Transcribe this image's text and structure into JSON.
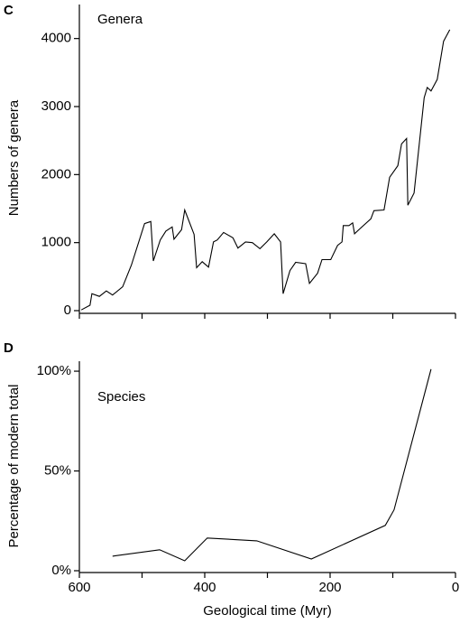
{
  "chart_data": [
    {
      "type": "line",
      "panel": "C",
      "annotation": "Genera",
      "ylabel": "Numbers of genera",
      "x": [
        597,
        583,
        580,
        568,
        557,
        547,
        531,
        517,
        496,
        486,
        482,
        471,
        462,
        452,
        449,
        437,
        432,
        417,
        413,
        404,
        394,
        386,
        380,
        370,
        355,
        347,
        335,
        324,
        312,
        301,
        289,
        279,
        275,
        264,
        255,
        239,
        233,
        220,
        213,
        199,
        188,
        181,
        179,
        170,
        164,
        161,
        153,
        135,
        130,
        114,
        105,
        92,
        86,
        78,
        76,
        66,
        50,
        45,
        39,
        29,
        19,
        9
      ],
      "series": [
        {
          "color": "#000000",
          "values": [
            10,
            80,
            250,
            210,
            290,
            230,
            350,
            670,
            1280,
            1310,
            730,
            1040,
            1170,
            1230,
            1050,
            1190,
            1480,
            1120,
            630,
            720,
            640,
            1010,
            1040,
            1150,
            1070,
            920,
            1010,
            1000,
            910,
            1010,
            1130,
            1010,
            250,
            590,
            710,
            690,
            400,
            550,
            750,
            750,
            960,
            1010,
            1250,
            1250,
            1290,
            1130,
            1200,
            1350,
            1470,
            1480,
            1960,
            2130,
            2450,
            2530,
            1550,
            1730,
            3130,
            3280,
            3230,
            3400,
            3960,
            4130
          ]
        }
      ],
      "xlim": [
        600,
        0
      ],
      "xticks": [
        600,
        500,
        400,
        300,
        200,
        100,
        0
      ],
      "xtick_labels": false,
      "ylim": [
        0,
        4500
      ],
      "yticks": [
        0,
        1000,
        2000,
        3000,
        4000
      ]
    },
    {
      "type": "line",
      "panel": "D",
      "annotation": "Species",
      "ylabel": "Percentage of modern total",
      "xlabel": "Geological time (Myr)",
      "x": [
        547,
        472,
        432,
        396,
        317,
        230,
        112,
        98,
        39
      ],
      "series": [
        {
          "color": "#000000",
          "values": [
            7.3,
            10.5,
            5,
            16.4,
            15,
            5.9,
            22.7,
            30.5,
            101
          ]
        }
      ],
      "xlim": [
        600,
        0
      ],
      "xticks": [
        600,
        400,
        200,
        0
      ],
      "xminor_ticks": [
        500,
        300,
        100
      ],
      "ylim": [
        0,
        105
      ],
      "yticks": [
        {
          "value": 0,
          "label": "0%"
        },
        {
          "value": 50,
          "label": "50%"
        },
        {
          "value": 100,
          "label": "100%"
        }
      ]
    }
  ]
}
